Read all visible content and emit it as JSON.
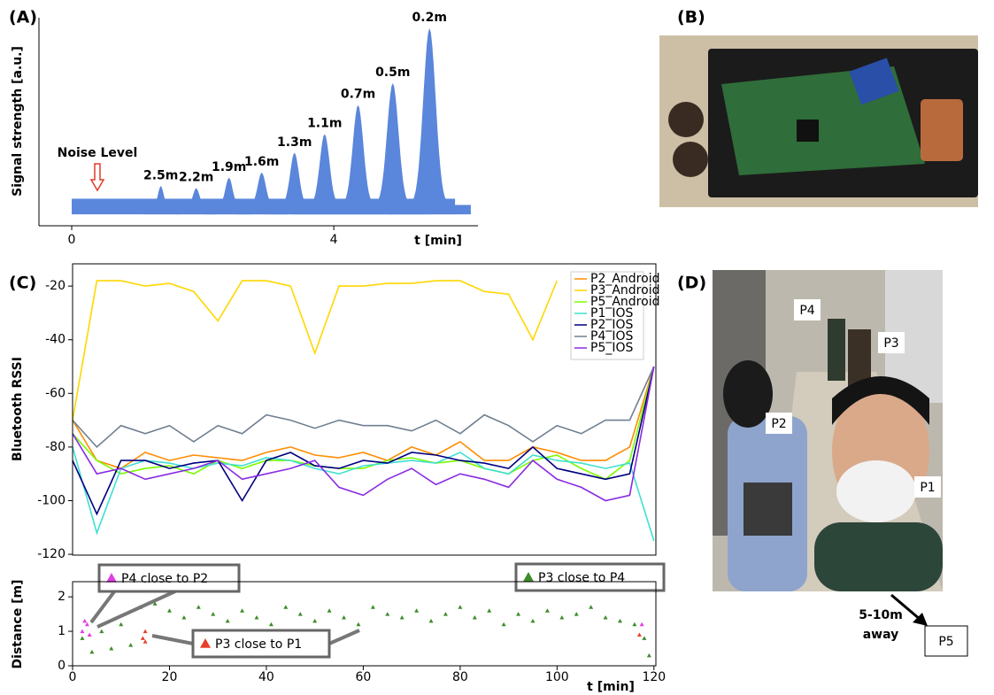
{
  "panel_labels": [
    "(A)",
    "(B)",
    "(C)",
    "(D)"
  ],
  "chart_data": [
    {
      "type": "area",
      "ylabel": "Signal strength [a.u.]",
      "xlabel": "t [min]",
      "xlim": [
        -0.5,
        6.2
      ],
      "xticks": [
        0,
        4
      ],
      "ylim": [
        0,
        10
      ],
      "color": "#5a86db",
      "noise_label": "Noise Level",
      "baseline": 1.0,
      "signal_span": [
        0,
        5.85
      ],
      "x": [
        1.36,
        1.9,
        2.4,
        2.9,
        3.4,
        3.86,
        4.37,
        4.9,
        5.46
      ],
      "values": [
        1.9,
        1.8,
        2.3,
        2.55,
        3.5,
        4.4,
        5.8,
        6.85,
        9.5
      ],
      "peak_labels": [
        "2.5m",
        "2.2m",
        "1.9m",
        "1.6m",
        "1.3m",
        "1.1m",
        "0.7m",
        "0.5m",
        "0.2m"
      ]
    },
    {
      "type": "line",
      "ylabel": "Bluetooth RSSI",
      "xlim": [
        0,
        120.4
      ],
      "ylim": [
        -120.3,
        -11.7
      ],
      "yticks": [
        -120,
        -100,
        -80,
        -60,
        -40,
        -20
      ],
      "legend": "upper right",
      "x": [
        0,
        5,
        10,
        15,
        20,
        25,
        30,
        35,
        40,
        45,
        50,
        55,
        60,
        65,
        70,
        75,
        80,
        85,
        90,
        95,
        100,
        105,
        110,
        115,
        120
      ],
      "series": [
        {
          "name": "P2_Android",
          "color": "#ff8c00",
          "values": [
            -70,
            -85,
            -88,
            -82,
            -85,
            -83,
            -84,
            -85,
            -82,
            -80,
            -83,
            -84,
            -82,
            -85,
            -80,
            -83,
            -78,
            -85,
            -85,
            -80,
            -82,
            -85,
            -85,
            -80,
            -50
          ]
        },
        {
          "name": "P3_Android",
          "color": "#ffd700",
          "values": [
            -70,
            -18,
            -18,
            -20,
            -19,
            -22,
            -33,
            -18,
            -18,
            -20,
            -45,
            -20,
            -20,
            -19,
            -19,
            -18,
            -18,
            -22,
            -23,
            -40,
            -18,
            null,
            null,
            null,
            null
          ]
        },
        {
          "name": "P5_Android",
          "color": "#7cfc00",
          "values": [
            -75,
            -85,
            -90,
            -88,
            -87,
            -90,
            -85,
            -88,
            -85,
            -85,
            -87,
            -88,
            -88,
            -85,
            -84,
            -86,
            -85,
            -88,
            -90,
            -85,
            -83,
            -88,
            -92,
            -85,
            -50
          ]
        },
        {
          "name": "P1_IOS",
          "color": "#40e0d0",
          "values": [
            -80,
            -112,
            -88,
            -85,
            -86,
            -88,
            -86,
            -87,
            -84,
            -85,
            -88,
            -90,
            -87,
            -86,
            -85,
            -86,
            -82,
            -88,
            -90,
            -83,
            -85,
            -86,
            -88,
            -86,
            -115
          ]
        },
        {
          "name": "P2_IOS",
          "color": "#000080",
          "values": [
            -85,
            -105,
            -85,
            -85,
            -88,
            -86,
            -85,
            -100,
            -85,
            -82,
            -87,
            -88,
            -85,
            -86,
            -82,
            -83,
            -85,
            -86,
            -88,
            -80,
            -88,
            -90,
            -92,
            -90,
            -50
          ]
        },
        {
          "name": "P4_IOS",
          "color": "#708090",
          "values": [
            -70,
            -80,
            -72,
            -75,
            -72,
            -78,
            -72,
            -75,
            -68,
            -70,
            -73,
            -70,
            -72,
            -72,
            -74,
            -70,
            -75,
            -68,
            -72,
            -78,
            -72,
            -75,
            -70,
            -70,
            -50
          ]
        },
        {
          "name": "P5_IOS",
          "color": "#8a2be2",
          "values": [
            -75,
            -90,
            -88,
            -92,
            -90,
            -88,
            -85,
            -92,
            -90,
            -88,
            -85,
            -95,
            -98,
            -92,
            -88,
            -94,
            -90,
            -92,
            -95,
            -85,
            -92,
            -95,
            -100,
            -98,
            -50
          ]
        }
      ]
    },
    {
      "type": "scatter",
      "ylabel": "Distance [m]",
      "xlabel": "t [min]",
      "xlim": [
        0,
        120.4
      ],
      "ylim": [
        0,
        2.44
      ],
      "xticks": [
        0,
        20,
        40,
        60,
        80,
        100,
        120
      ],
      "yticks": [
        0,
        1,
        2
      ],
      "series": [
        {
          "name": "P3 close to P4",
          "color": "#3c8d2a",
          "x": [
            2,
            4,
            6,
            8,
            10,
            12,
            14,
            17,
            20,
            23,
            26,
            29,
            32,
            35,
            38,
            41,
            44,
            47,
            50,
            53,
            56,
            59,
            62,
            65,
            68,
            71,
            74,
            77,
            80,
            83,
            86,
            89,
            92,
            95,
            98,
            101,
            104,
            107,
            110,
            113,
            116,
            118,
            119
          ],
          "values": [
            0.8,
            0.4,
            1.0,
            0.5,
            1.2,
            0.6,
            1.7,
            1.8,
            1.6,
            1.4,
            1.7,
            1.5,
            1.3,
            1.6,
            1.4,
            1.2,
            1.7,
            1.5,
            1.3,
            1.6,
            1.4,
            1.2,
            1.7,
            1.5,
            1.4,
            1.6,
            1.3,
            1.5,
            1.7,
            1.4,
            1.6,
            1.2,
            1.5,
            1.3,
            1.6,
            1.4,
            1.5,
            1.7,
            1.4,
            1.3,
            1.2,
            0.8,
            0.3
          ]
        },
        {
          "name": "P4 close to P2",
          "color": "#e040e0",
          "x": [
            2,
            2.5,
            3,
            3.5,
            117.5
          ],
          "values": [
            1.0,
            1.3,
            1.2,
            0.9,
            1.2
          ]
        },
        {
          "name": "P3 close to P1",
          "color": "#e8402a",
          "x": [
            14.5,
            15,
            15,
            117
          ],
          "values": [
            0.8,
            0.7,
            1.0,
            0.9
          ]
        }
      ]
    }
  ],
  "photo_d": {
    "people": [
      "P4",
      "P3",
      "P2",
      "P1"
    ],
    "distance_note": [
      "5-10m",
      "away"
    ],
    "remote": "P5"
  }
}
